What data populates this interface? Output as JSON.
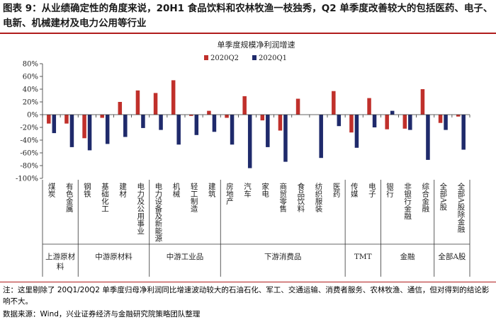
{
  "figure": {
    "title": "图表 9：从业绩确定性的角度来说，20H1 食品饮料和农林牧渔一枝独秀，Q2 单季度改善较大的包括医药、电子、电新、机械建材及电力公用等行业",
    "note": "注：这里剔除了 20Q1/20Q2 单季度归母净利润同比增速波动较大的石油石化、军工、交通运输、消费者服务、农林牧渔、通信，但对得到的结论影响不大。",
    "source": "数据来源：Wind，兴业证券经济与金融研究院策略团队整理"
  },
  "chart_data": {
    "type": "bar",
    "title": "单季度规模净利润增速",
    "categories": [
      "煤炭",
      "有色金属",
      "钢铁",
      "基础化工",
      "建材",
      "电力及公用事业",
      "电力设备及新能源",
      "机械",
      "轻工制造",
      "建筑",
      "房地产",
      "汽车",
      "家电",
      "商贸零售",
      "食品饮料",
      "纺织服装",
      "医药",
      "传媒",
      "电子",
      "银行",
      "非银行金融",
      "综合金融",
      "全部A股",
      "全部A股除金融"
    ],
    "series": [
      {
        "name": "2020Q2",
        "color": "#c0302b",
        "values": [
          -14,
          -14,
          -37,
          -5,
          20,
          38,
          34,
          54,
          -2,
          6,
          -5,
          29,
          -9,
          -25,
          25,
          0,
          37,
          -28,
          26,
          -23,
          -22,
          40,
          -13,
          -3
        ]
      },
      {
        "name": "2020Q1",
        "color": "#1f2a6b",
        "values": [
          -29,
          -51,
          -56,
          -46,
          -35,
          -21,
          -24,
          -47,
          -32,
          -27,
          -47,
          -84,
          -51,
          -74,
          0,
          -68,
          -18,
          -52,
          -20,
          6,
          -24,
          -71,
          -24,
          -55
        ]
      }
    ],
    "groups": [
      {
        "label": "上游原材料",
        "start": 0,
        "end": 1
      },
      {
        "label": "中游原材料",
        "start": 2,
        "end": 5
      },
      {
        "label": "中游工业品",
        "start": 6,
        "end": 9
      },
      {
        "label": "下游消费品",
        "start": 10,
        "end": 16
      },
      {
        "label": "TMT",
        "start": 17,
        "end": 18
      },
      {
        "label": "金融",
        "start": 19,
        "end": 21
      },
      {
        "label": "全部A股",
        "start": 22,
        "end": 23
      }
    ],
    "yticks": [
      80,
      60,
      40,
      20,
      0,
      -20,
      -40,
      -60,
      -80,
      -100
    ],
    "ylim": [
      -100,
      80
    ],
    "ytick_suffix": "%"
  }
}
